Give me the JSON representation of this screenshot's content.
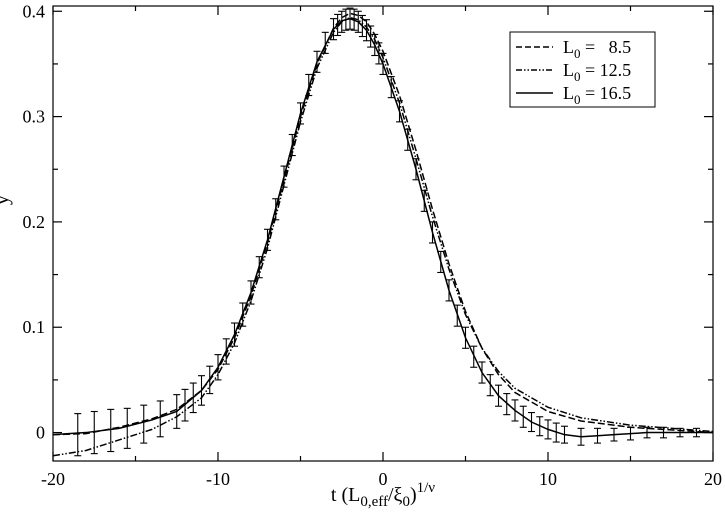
{
  "chart_data": {
    "type": "line",
    "xlabel": {
      "base": "t (L",
      "sub1": "0,eff",
      "mid": "/ξ",
      "sub2": "0",
      "close": ")",
      "sup": "1/ν"
    },
    "ylabel": "y",
    "xlim": [
      -20,
      20
    ],
    "ylim": [
      -0.027,
      0.405
    ],
    "xticks": [
      -20,
      -10,
      0,
      10,
      20
    ],
    "yticks": [
      0,
      0.1,
      0.2,
      0.3,
      0.4
    ],
    "xtick_labels": [
      "-20",
      "-10",
      "0",
      "10",
      "20"
    ],
    "ytick_labels": [
      "0",
      "0.1",
      "0.2",
      "0.3",
      "0.4"
    ],
    "legend_position": "top-right",
    "grid": false,
    "series": [
      {
        "name": "8.5",
        "legend_prefix": "L",
        "legend_sub": "0",
        "legend_eq": " =   8.5",
        "style": "dashed",
        "x": [
          -20,
          -18,
          -16,
          -14,
          -12.5,
          -11,
          -10,
          -9,
          -8,
          -7,
          -6,
          -5,
          -4,
          -3,
          -2.5,
          -2,
          -1.5,
          -1,
          -0.5,
          0,
          1,
          2,
          3,
          4,
          5,
          6,
          7,
          8,
          10,
          12,
          15,
          20
        ],
        "y": [
          -0.002,
          -0.001,
          0.005,
          0.013,
          0.022,
          0.04,
          0.06,
          0.09,
          0.13,
          0.18,
          0.24,
          0.3,
          0.35,
          0.384,
          0.394,
          0.398,
          0.396,
          0.39,
          0.378,
          0.362,
          0.32,
          0.268,
          0.212,
          0.16,
          0.115,
          0.08,
          0.055,
          0.038,
          0.02,
          0.011,
          0.005,
          0.0
        ]
      },
      {
        "name": "12.5",
        "legend_prefix": "L",
        "legend_sub": "0",
        "legend_eq": " = 12.5",
        "style": "dashdot",
        "x": [
          -20,
          -18,
          -16,
          -14,
          -12.5,
          -11,
          -10,
          -9,
          -8,
          -7,
          -6,
          -5,
          -4,
          -3,
          -2.5,
          -2,
          -1.5,
          -1,
          -0.5,
          0,
          1,
          2,
          3,
          4,
          5,
          6,
          7,
          8,
          10,
          12,
          15,
          20
        ],
        "y": [
          -0.022,
          -0.017,
          -0.007,
          0.003,
          0.015,
          0.033,
          0.055,
          0.085,
          0.125,
          0.175,
          0.235,
          0.295,
          0.346,
          0.38,
          0.39,
          0.394,
          0.392,
          0.385,
          0.373,
          0.356,
          0.313,
          0.26,
          0.205,
          0.155,
          0.112,
          0.08,
          0.058,
          0.042,
          0.024,
          0.014,
          0.007,
          0.001
        ]
      },
      {
        "name": "16.5",
        "legend_prefix": "L",
        "legend_sub": "0",
        "legend_eq": " = 16.5",
        "style": "solid",
        "x": [
          -20,
          -18,
          -16,
          -14,
          -12.5,
          -11,
          -10,
          -9,
          -8,
          -7,
          -6,
          -5,
          -4,
          -3,
          -2.5,
          -2,
          -1.5,
          -1,
          -0.5,
          0,
          1,
          2,
          3,
          4,
          5,
          6,
          7,
          8,
          9,
          10,
          11,
          12,
          13,
          14,
          15,
          16,
          17,
          18,
          20
        ],
        "y": [
          -0.002,
          0.0,
          0.004,
          0.012,
          0.02,
          0.04,
          0.062,
          0.093,
          0.133,
          0.183,
          0.243,
          0.303,
          0.352,
          0.383,
          0.391,
          0.393,
          0.39,
          0.382,
          0.368,
          0.35,
          0.305,
          0.25,
          0.19,
          0.135,
          0.09,
          0.057,
          0.035,
          0.021,
          0.01,
          0.003,
          -0.002,
          -0.004,
          -0.003,
          -0.002,
          -0.001,
          0.0,
          0.0,
          0.0,
          0.0
        ]
      }
    ],
    "errorbars": {
      "series": "16.5",
      "x": [
        -18.5,
        -17.5,
        -16.5,
        -15.5,
        -14.5,
        -13.5,
        -12.5,
        -12.0,
        -11.5,
        -11.0,
        -10.5,
        -10.0,
        -9.5,
        -9.0,
        -8.5,
        -8.0,
        -7.5,
        -7.0,
        -6.5,
        -6.0,
        -5.5,
        -5.0,
        -4.5,
        -4.0,
        -3.5,
        -3.0,
        -2.75,
        -2.5,
        -2.25,
        -2.0,
        -1.75,
        -1.5,
        -1.25,
        -1.0,
        -0.75,
        -0.5,
        -0.25,
        0.0,
        0.5,
        1.0,
        1.5,
        2.0,
        2.5,
        3.0,
        3.5,
        4.0,
        4.5,
        5.0,
        5.5,
        6.0,
        6.5,
        7.0,
        7.5,
        8.0,
        8.5,
        9.0,
        9.5,
        10.0,
        10.5,
        11.0,
        12.0,
        13.0,
        14.0,
        15.0,
        16.0,
        17.0,
        18.0,
        19.0
      ],
      "y": [
        -0.002,
        0.0,
        0.002,
        0.004,
        0.008,
        0.013,
        0.02,
        0.026,
        0.033,
        0.04,
        0.05,
        0.062,
        0.077,
        0.093,
        0.112,
        0.133,
        0.157,
        0.183,
        0.212,
        0.243,
        0.273,
        0.303,
        0.33,
        0.352,
        0.37,
        0.383,
        0.387,
        0.39,
        0.392,
        0.393,
        0.392,
        0.39,
        0.386,
        0.382,
        0.376,
        0.368,
        0.36,
        0.35,
        0.328,
        0.305,
        0.278,
        0.25,
        0.22,
        0.19,
        0.162,
        0.135,
        0.111,
        0.09,
        0.072,
        0.057,
        0.045,
        0.035,
        0.027,
        0.021,
        0.015,
        0.01,
        0.006,
        0.003,
        0.0,
        -0.002,
        -0.004,
        -0.003,
        -0.002,
        -0.001,
        0.0,
        0.0,
        0.0,
        0.0
      ],
      "err": [
        0.02,
        0.02,
        0.02,
        0.019,
        0.018,
        0.017,
        0.016,
        0.015,
        0.014,
        0.014,
        0.013,
        0.012,
        0.012,
        0.011,
        0.011,
        0.011,
        0.01,
        0.01,
        0.01,
        0.01,
        0.01,
        0.01,
        0.01,
        0.01,
        0.01,
        0.01,
        0.01,
        0.01,
        0.01,
        0.01,
        0.01,
        0.01,
        0.01,
        0.01,
        0.01,
        0.01,
        0.01,
        0.01,
        0.01,
        0.01,
        0.01,
        0.01,
        0.01,
        0.01,
        0.01,
        0.01,
        0.01,
        0.01,
        0.01,
        0.01,
        0.01,
        0.01,
        0.01,
        0.01,
        0.01,
        0.009,
        0.009,
        0.009,
        0.009,
        0.008,
        0.008,
        0.007,
        0.006,
        0.006,
        0.005,
        0.005,
        0.004,
        0.004
      ]
    }
  }
}
